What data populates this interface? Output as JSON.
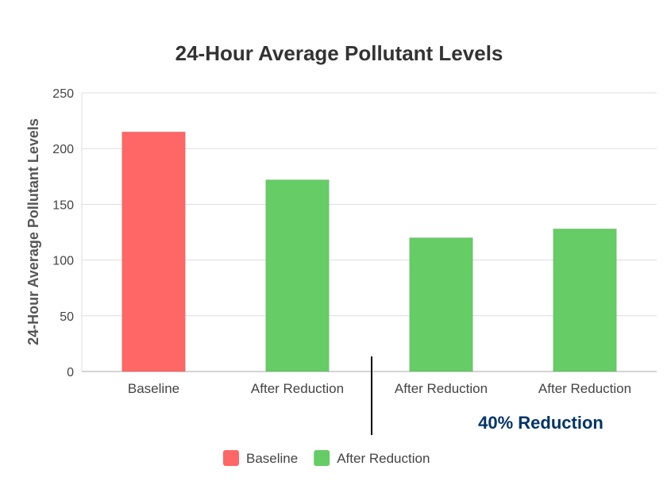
{
  "chart_data": {
    "type": "bar",
    "title": "24-Hour Average Pollutant Levels",
    "xlabel": "",
    "ylabel": "24-Hour Average Pollutant Levels",
    "ylim": [
      0,
      250
    ],
    "yticks": [
      0,
      50,
      100,
      150,
      200,
      250
    ],
    "grid": true,
    "categories": [
      "Baseline",
      "After Reduction",
      "After Reduction",
      "After Reduction"
    ],
    "values": [
      215,
      172,
      120,
      128
    ],
    "bar_series": [
      "Baseline",
      "After Reduction",
      "After Reduction",
      "After Reduction"
    ],
    "annotation": "40% Reduction",
    "legend_placement": "bottom",
    "legend": [
      {
        "name": "Baseline",
        "color": "#ff6666"
      },
      {
        "name": "After Reduction",
        "color": "#66cc66"
      }
    ],
    "colors": {
      "Baseline": "#ff6666",
      "After Reduction": "#66cc66",
      "title": "#333333",
      "axis_text": "#444444",
      "annotation": "#003366",
      "grid": "#dddddd",
      "axis_line": "#aaaaaa",
      "divider": "#000000"
    }
  }
}
